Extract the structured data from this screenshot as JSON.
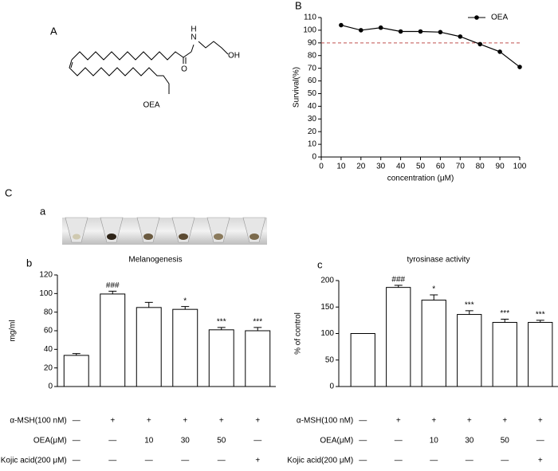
{
  "panel_labels": [
    "A",
    "B",
    "C",
    "a",
    "b",
    "c"
  ],
  "structure": {
    "compound": "OEA",
    "atoms": [
      "N",
      "H",
      "OH",
      "O"
    ]
  },
  "chart_data": [
    {
      "type": "line",
      "xlabel": "concentration (μM)",
      "ylabel": "Survival(%)",
      "x": [
        10,
        20,
        30,
        40,
        50,
        60,
        70,
        80,
        90,
        100
      ],
      "series": [
        {
          "name": "OEA",
          "color": "#000000",
          "values": [
            104,
            100,
            102,
            99,
            99,
            98.5,
            95,
            89,
            83,
            71
          ]
        }
      ],
      "reference_line": {
        "value": 90,
        "color": "#c0504d"
      },
      "xlim": [
        0,
        100
      ],
      "xticks": [
        0,
        10,
        20,
        30,
        40,
        50,
        60,
        70,
        80,
        90,
        100
      ],
      "ylim": [
        0,
        110
      ],
      "yticks": [
        0,
        10,
        20,
        30,
        40,
        50,
        60,
        70,
        80,
        90,
        100,
        110
      ],
      "legend": "upper right"
    },
    {
      "type": "bar",
      "title": "Melanogenesis",
      "ylabel": "mg/ml",
      "color": "#ffffff",
      "values": [
        33.5,
        99.5,
        85,
        83,
        61,
        60
      ],
      "errors": [
        2,
        3,
        5.5,
        3,
        2.5,
        3.5
      ],
      "annotations": [
        null,
        "###",
        null,
        "*",
        "***",
        "***"
      ],
      "ylim": [
        0,
        120
      ],
      "yticks": [
        0,
        20,
        40,
        60,
        80,
        100,
        120
      ],
      "treatments": [
        {
          "label": "α-MSH(100 nM)",
          "cells": [
            "—",
            "+",
            "+",
            "+",
            "+",
            "+"
          ]
        },
        {
          "label": "OEA(μM)",
          "cells": [
            "—",
            "—",
            "10",
            "30",
            "50",
            "—"
          ]
        },
        {
          "label": "Kojic acid(200 μM)",
          "cells": [
            "—",
            "—",
            "—",
            "—",
            "—",
            "+"
          ]
        }
      ]
    },
    {
      "type": "bar",
      "title": "tyrosinase activity",
      "ylabel": "% of control",
      "color": "#ffffff",
      "values": [
        100,
        187,
        163,
        136,
        121,
        121
      ],
      "errors": [
        0,
        4,
        10,
        7,
        6,
        4
      ],
      "annotations": [
        null,
        "###",
        "*",
        "***",
        "***",
        "***"
      ],
      "ylim": [
        0,
        200
      ],
      "yticks": [
        0,
        50,
        100,
        150,
        200
      ],
      "treatments": [
        {
          "label": "α-MSH(100 nM)",
          "cells": [
            "—",
            "+",
            "+",
            "+",
            "+",
            "+"
          ]
        },
        {
          "label": "OEA(μM)",
          "cells": [
            "—",
            "—",
            "10",
            "30",
            "50",
            "—"
          ]
        },
        {
          "label": "Kojic acid(200 μM)",
          "cells": [
            "—",
            "—",
            "—",
            "—",
            "—",
            "+"
          ]
        }
      ]
    }
  ]
}
